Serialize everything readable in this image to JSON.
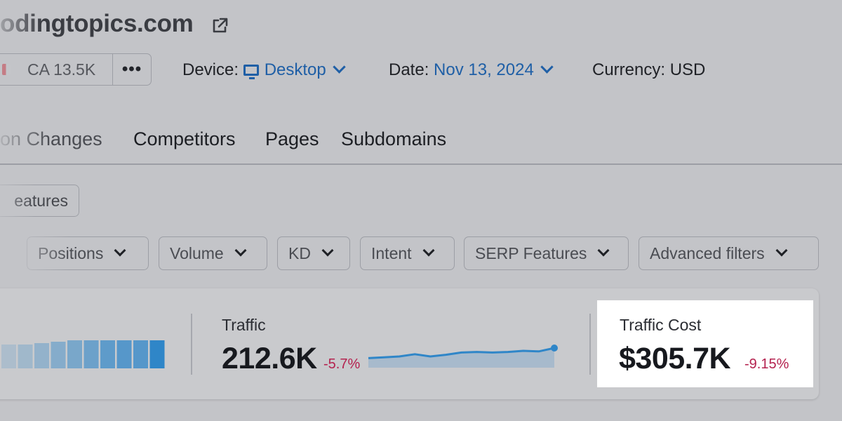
{
  "header": {
    "domain": "odingtopics.com",
    "database_label": "CA 13.5K",
    "more_label": "•••",
    "device_label": "Device:",
    "device_value": "Desktop",
    "date_label": "Date:",
    "date_value": "Nov 13, 2024",
    "currency_label": "Currency: USD"
  },
  "tabs": [
    {
      "label": "on Changes"
    },
    {
      "label": "Competitors"
    },
    {
      "label": "Pages"
    },
    {
      "label": "Subdomains"
    }
  ],
  "serp_features_button": "eatures",
  "filters": [
    {
      "label": "Positions"
    },
    {
      "label": "Volume"
    },
    {
      "label": "KD"
    },
    {
      "label": "Intent"
    },
    {
      "label": "SERP Features"
    },
    {
      "label": "Advanced filters"
    }
  ],
  "metrics": {
    "traffic": {
      "label": "Traffic",
      "value": "212.6K",
      "change": "-5.7%"
    },
    "traffic_cost": {
      "label": "Traffic Cost",
      "value": "$305.7K",
      "change": "-9.15%"
    }
  },
  "sparkline": {
    "values": [
      0.64,
      0.67,
      0.7,
      0.78,
      0.7,
      0.76,
      0.84,
      0.86,
      0.84,
      0.86,
      0.9,
      0.88,
      1.0
    ]
  },
  "distribution_bars": {
    "values": [
      0.85,
      0.85,
      0.9,
      0.95,
      1.0,
      1.0,
      1.0,
      1.0,
      1.0,
      1.0
    ]
  },
  "colors": {
    "accent_link": "#1f5fa6",
    "negative_change": "#b4224f",
    "chart_line": "#2f86c8"
  }
}
